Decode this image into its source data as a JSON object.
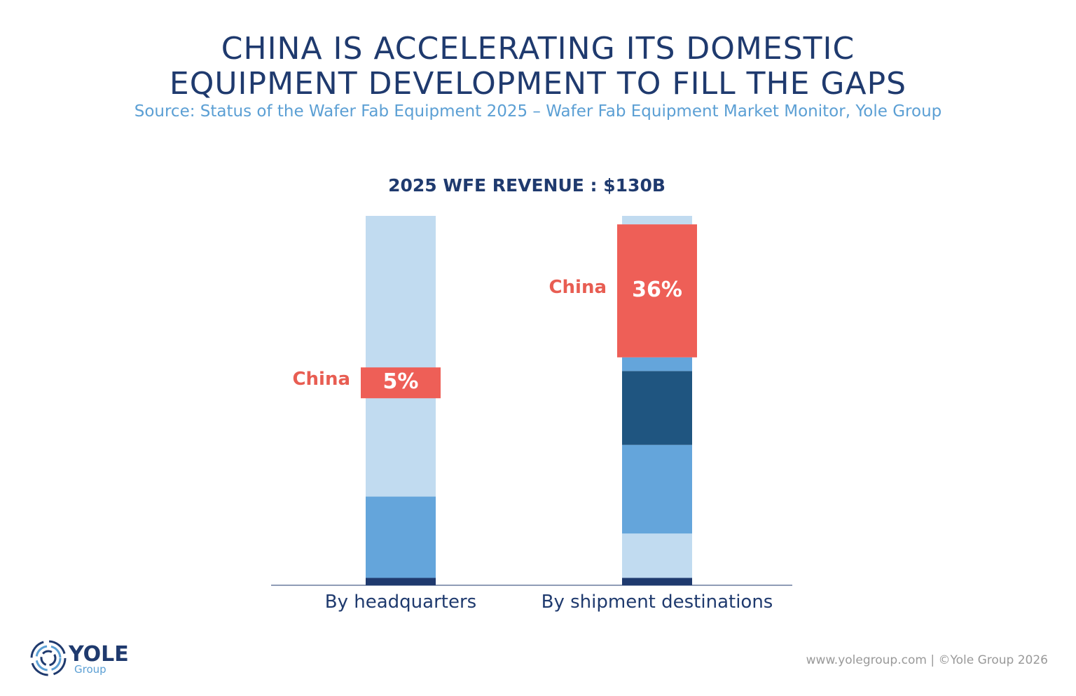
{
  "header": {
    "title_line1": "CHINA IS ACCELERATING ITS DOMESTIC",
    "title_line2": "EQUIPMENT DEVELOPMENT TO FILL THE GAPS",
    "source": "Source: Status of the Wafer Fab Equipment 2025 – Wafer Fab Equipment Market Monitor, Yole Group"
  },
  "chart_data": {
    "type": "bar",
    "stacked": true,
    "title": "2025 WFE REVENUE :  $130B",
    "categories": [
      "By headquarters",
      "By shipment destinations"
    ],
    "ylim": [
      0,
      100
    ],
    "colors": {
      "navy": "#1f3a6e",
      "dark": "#1f5580",
      "mid": "#64a5db",
      "light": "#c1dbf0",
      "china": "#ee5f57"
    },
    "bars": [
      {
        "category": "By headquarters",
        "segments": [
          {
            "color": "navy",
            "value": 2
          },
          {
            "color": "mid",
            "value": 22
          },
          {
            "color": "light",
            "value": 28.3
          },
          {
            "color": "china",
            "value": 5,
            "label": "China",
            "value_label": "5%"
          },
          {
            "color": "light",
            "value": 42.7
          }
        ]
      },
      {
        "category": "By shipment destinations",
        "segments": [
          {
            "color": "navy",
            "value": 2
          },
          {
            "color": "light",
            "value": 12
          },
          {
            "color": "mid",
            "value": 24
          },
          {
            "color": "dark",
            "value": 20
          },
          {
            "color": "mid",
            "value": 3.7
          },
          {
            "color": "china",
            "value": 36,
            "label": "China",
            "value_label": "36%"
          },
          {
            "color": "light",
            "value": 2.3
          }
        ]
      }
    ]
  },
  "footer": {
    "text": "www.yolegroup.com | ©Yole Group 2026",
    "logo_name": "YOLE",
    "logo_sub": "Group"
  }
}
